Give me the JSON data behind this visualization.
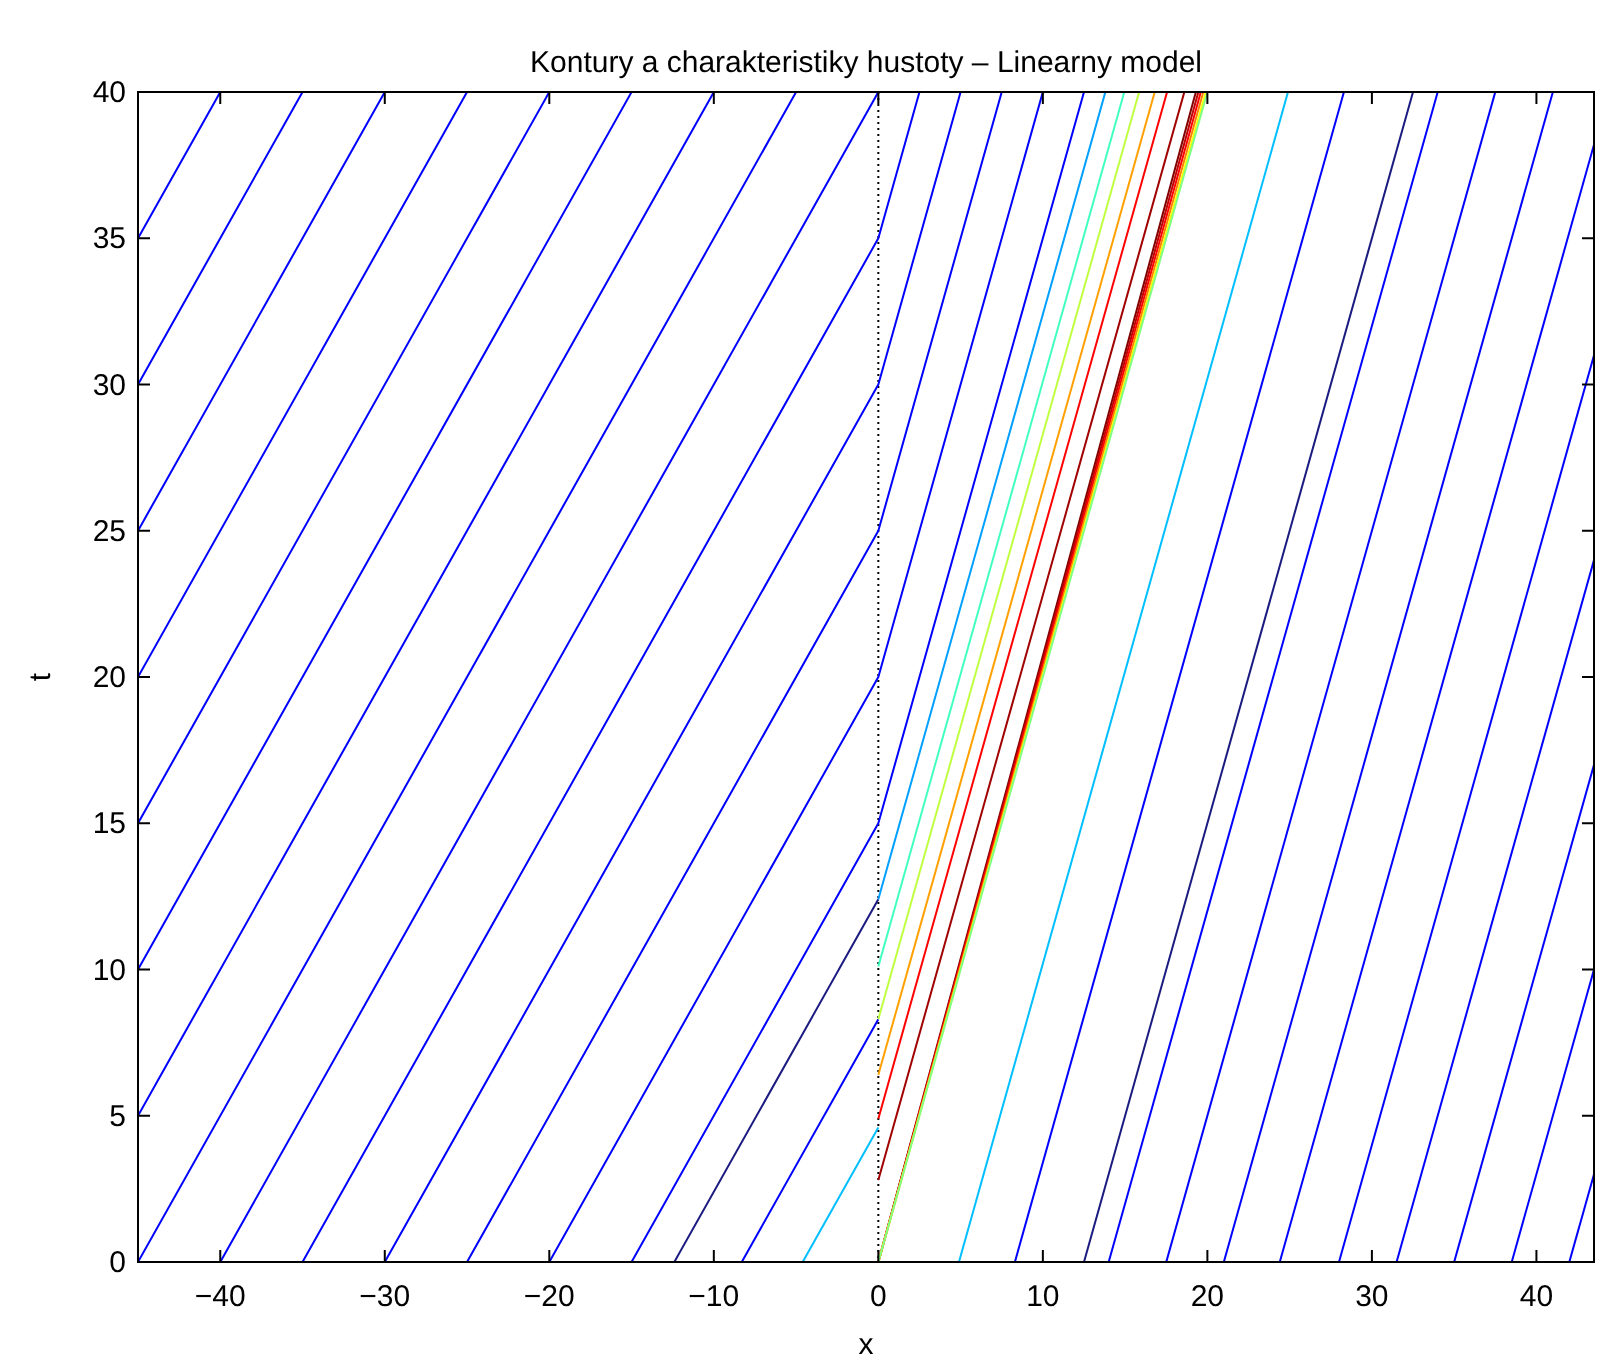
{
  "chart_data": {
    "type": "line",
    "title": "Kontury a charakteristiky hustoty – Linearny model",
    "xlabel": "x",
    "ylabel": "t",
    "xlim": [
      -45,
      43.5
    ],
    "ylim": [
      0,
      40
    ],
    "xticks": [
      -40,
      -30,
      -20,
      -10,
      0,
      10,
      20,
      30,
      40
    ],
    "yticks": [
      0,
      5,
      10,
      15,
      20,
      25,
      30,
      35,
      40
    ],
    "grid": false,
    "marker": "none",
    "line_style": "solid",
    "ref_lines": [
      {
        "axis": "x",
        "value": 0,
        "color": "#000000",
        "line_style": "dotted"
      }
    ],
    "series": [
      {
        "color": "#0000ff",
        "x": [
          -45,
          -40
        ],
        "values": [
          35,
          40
        ]
      },
      {
        "color": "#0000ff",
        "x": [
          -45,
          -35
        ],
        "values": [
          30,
          40
        ]
      },
      {
        "color": "#0000ff",
        "x": [
          -45,
          -30
        ],
        "values": [
          25,
          40
        ]
      },
      {
        "color": "#0000ff",
        "x": [
          -45,
          -25
        ],
        "values": [
          20,
          40
        ]
      },
      {
        "color": "#0000ff",
        "x": [
          -45,
          -20
        ],
        "values": [
          15,
          40
        ]
      },
      {
        "color": "#0000ff",
        "x": [
          -45,
          -15
        ],
        "values": [
          10,
          40
        ]
      },
      {
        "color": "#0000ff",
        "x": [
          -45,
          -10
        ],
        "values": [
          5,
          40
        ]
      },
      {
        "color": "#0000ff",
        "x": [
          -45,
          -5
        ],
        "values": [
          0,
          40
        ]
      },
      {
        "color": "#0000ff",
        "x": [
          -40,
          0
        ],
        "values": [
          0,
          40
        ]
      },
      {
        "color": "#0000ff",
        "x": [
          -35,
          0,
          2.5
        ],
        "values": [
          0,
          35,
          40
        ]
      },
      {
        "color": "#0000ff",
        "x": [
          -30,
          0,
          5
        ],
        "values": [
          0,
          30,
          40
        ]
      },
      {
        "color": "#0000ff",
        "x": [
          -25,
          0,
          7.5
        ],
        "values": [
          0,
          25,
          40
        ]
      },
      {
        "color": "#0000ff",
        "x": [
          -20,
          0,
          10
        ],
        "values": [
          0,
          20,
          40
        ]
      },
      {
        "color": "#0000ff",
        "x": [
          -15,
          0,
          12.5
        ],
        "values": [
          0,
          15,
          40
        ]
      },
      {
        "color": "#1a1a80",
        "x": [
          -12.4,
          0
        ],
        "values": [
          0,
          12.4
        ]
      },
      {
        "color": "#0000ff",
        "x": [
          -8.3,
          0
        ],
        "values": [
          0,
          8.3
        ]
      },
      {
        "color": "#00bfff",
        "x": [
          -4.6,
          0
        ],
        "values": [
          0,
          4.6
        ]
      },
      {
        "color": "#00a0ff",
        "x": [
          0,
          13.8
        ],
        "values": [
          12.4,
          40
        ]
      },
      {
        "color": "#40ffc0",
        "x": [
          0,
          14.95
        ],
        "values": [
          10.1,
          40
        ]
      },
      {
        "color": "#c0ff40",
        "x": [
          0,
          15.85
        ],
        "values": [
          8.3,
          40
        ]
      },
      {
        "color": "#ffa000",
        "x": [
          0,
          16.8
        ],
        "values": [
          6.4,
          40
        ]
      },
      {
        "color": "#ff0000",
        "x": [
          0,
          17.55
        ],
        "values": [
          4.9,
          40
        ]
      },
      {
        "color": "#a00000",
        "x": [
          0,
          18.6
        ],
        "values": [
          2.8,
          40
        ]
      },
      {
        "color": "#800000",
        "x": [
          0,
          19.3
        ],
        "values": [
          0,
          40
        ]
      },
      {
        "color": "#c00000",
        "x": [
          0,
          19.45
        ],
        "values": [
          0,
          40
        ]
      },
      {
        "color": "#ff0000",
        "x": [
          0,
          19.6
        ],
        "values": [
          0,
          40
        ]
      },
      {
        "color": "#ff8000",
        "x": [
          0,
          19.75
        ],
        "values": [
          0,
          40
        ]
      },
      {
        "color": "#ffff00",
        "x": [
          0,
          19.9
        ],
        "values": [
          0,
          40
        ]
      },
      {
        "color": "#80ff80",
        "x": [
          0,
          20
        ],
        "values": [
          0,
          40
        ]
      },
      {
        "color": "#00bfff",
        "x": [
          4.9,
          24.9
        ],
        "values": [
          0,
          40
        ]
      },
      {
        "color": "#0000ff",
        "x": [
          8.3,
          28.3
        ],
        "values": [
          0,
          40
        ]
      },
      {
        "color": "#1a1a80",
        "x": [
          12.5,
          32.5
        ],
        "values": [
          0,
          40
        ]
      },
      {
        "color": "#0000ff",
        "x": [
          14,
          34
        ],
        "values": [
          0,
          40
        ]
      },
      {
        "color": "#0000ff",
        "x": [
          17.5,
          37.5
        ],
        "values": [
          0,
          40
        ]
      },
      {
        "color": "#0000ff",
        "x": [
          21,
          41
        ],
        "values": [
          0,
          40
        ]
      },
      {
        "color": "#0000ff",
        "x": [
          24.4,
          43.5
        ],
        "values": [
          0,
          38.2
        ]
      },
      {
        "color": "#0000ff",
        "x": [
          28,
          43.5
        ],
        "values": [
          0,
          31
        ]
      },
      {
        "color": "#0000ff",
        "x": [
          31.5,
          43.5
        ],
        "values": [
          0,
          24
        ]
      },
      {
        "color": "#0000ff",
        "x": [
          35,
          43.5
        ],
        "values": [
          0,
          17
        ]
      },
      {
        "color": "#0000ff",
        "x": [
          38.5,
          43.5
        ],
        "values": [
          0,
          10
        ]
      },
      {
        "color": "#0000ff",
        "x": [
          42,
          43.5
        ],
        "values": [
          0,
          3
        ]
      }
    ]
  }
}
